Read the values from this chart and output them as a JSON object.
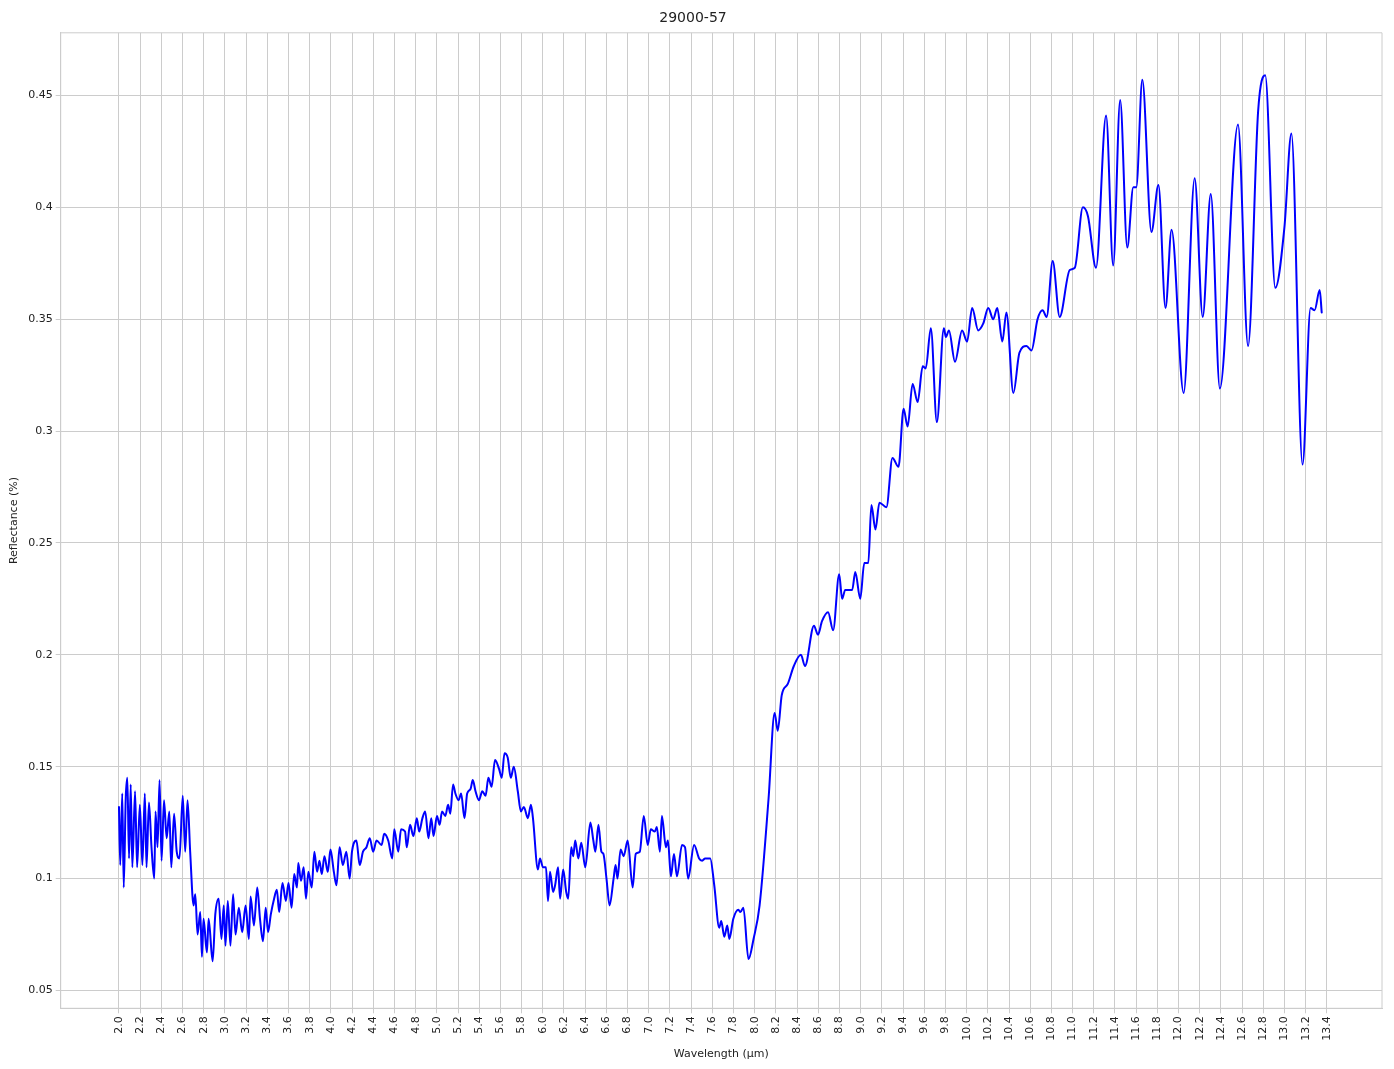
{
  "chart_data": {
    "type": "line",
    "title": "29000-57",
    "xlabel": "Wavelength (µm)",
    "ylabel": "Reflectance (%)",
    "xlim": [
      1.45,
      13.92
    ],
    "ylim": [
      0.042,
      0.478
    ],
    "xticks": [
      {
        "value": 2.0,
        "label": "2.0"
      },
      {
        "value": 2.2,
        "label": "2.2"
      },
      {
        "value": 2.4,
        "label": "2.4"
      },
      {
        "value": 2.6,
        "label": "2.6"
      },
      {
        "value": 2.8,
        "label": "2.8"
      },
      {
        "value": 3.0,
        "label": "3.0"
      },
      {
        "value": 3.2,
        "label": "3.2"
      },
      {
        "value": 3.4,
        "label": "3.4"
      },
      {
        "value": 3.6,
        "label": "3.6"
      },
      {
        "value": 3.8,
        "label": "3.8"
      },
      {
        "value": 4.0,
        "label": "4.0"
      },
      {
        "value": 4.2,
        "label": "4.2"
      },
      {
        "value": 4.4,
        "label": "4.4"
      },
      {
        "value": 4.6,
        "label": "4.6"
      },
      {
        "value": 4.8,
        "label": "4.8"
      },
      {
        "value": 5.0,
        "label": "5.0"
      },
      {
        "value": 5.2,
        "label": "5.2"
      },
      {
        "value": 5.4,
        "label": "5.4"
      },
      {
        "value": 5.6,
        "label": "5.6"
      },
      {
        "value": 5.8,
        "label": "5.8"
      },
      {
        "value": 6.0,
        "label": "6.0"
      },
      {
        "value": 6.2,
        "label": "6.2"
      },
      {
        "value": 6.4,
        "label": "6.4"
      },
      {
        "value": 6.6,
        "label": "6.6"
      },
      {
        "value": 6.8,
        "label": "6.8"
      },
      {
        "value": 7.0,
        "label": "7.0"
      },
      {
        "value": 7.2,
        "label": "7.2"
      },
      {
        "value": 7.4,
        "label": "7.4"
      },
      {
        "value": 7.6,
        "label": "7.6"
      },
      {
        "value": 7.8,
        "label": "7.8"
      },
      {
        "value": 8.0,
        "label": "8.0"
      },
      {
        "value": 8.2,
        "label": "8.2"
      },
      {
        "value": 8.4,
        "label": "8.4"
      },
      {
        "value": 8.6,
        "label": "8.6"
      },
      {
        "value": 8.8,
        "label": "8.8"
      },
      {
        "value": 9.0,
        "label": "9.0"
      },
      {
        "value": 9.2,
        "label": "9.2"
      },
      {
        "value": 9.4,
        "label": "9.4"
      },
      {
        "value": 9.6,
        "label": "9.6"
      },
      {
        "value": 9.8,
        "label": "9.8"
      },
      {
        "value": 10.0,
        "label": "10.0"
      },
      {
        "value": 10.2,
        "label": "10.2"
      },
      {
        "value": 10.4,
        "label": "10.4"
      },
      {
        "value": 10.6,
        "label": "10.6"
      },
      {
        "value": 10.8,
        "label": "10.8"
      },
      {
        "value": 11.0,
        "label": "11.0"
      },
      {
        "value": 11.2,
        "label": "11.2"
      },
      {
        "value": 11.4,
        "label": "11.4"
      },
      {
        "value": 11.6,
        "label": "11.6"
      },
      {
        "value": 11.8,
        "label": "11.8"
      },
      {
        "value": 12.0,
        "label": "12.0"
      },
      {
        "value": 12.2,
        "label": "12.2"
      },
      {
        "value": 12.4,
        "label": "12.4"
      },
      {
        "value": 12.6,
        "label": "12.6"
      },
      {
        "value": 12.8,
        "label": "12.8"
      },
      {
        "value": 13.0,
        "label": "13.0"
      },
      {
        "value": 13.2,
        "label": "13.2"
      },
      {
        "value": 13.4,
        "label": "13.4"
      }
    ],
    "yticks": [
      0.05,
      0.1,
      0.15,
      0.2,
      0.25,
      0.3,
      0.35,
      0.4,
      0.45
    ],
    "grid": true,
    "legend": false,
    "marker": "none",
    "line_style": "solid",
    "x": [
      2.0,
      2.012,
      2.031,
      2.045,
      2.064,
      2.079,
      2.095,
      2.111,
      2.126,
      2.152,
      2.171,
      2.197,
      2.221,
      2.244,
      2.26,
      2.283,
      2.307,
      2.333,
      2.345,
      2.364,
      2.383,
      2.402,
      2.425,
      2.45,
      2.475,
      2.494,
      2.52,
      2.545,
      2.571,
      2.602,
      2.625,
      2.647,
      2.672,
      2.704,
      2.72,
      2.742,
      2.767,
      2.783,
      2.798,
      2.83,
      2.846,
      2.884,
      2.909,
      2.941,
      2.967,
      2.989,
      3.005,
      3.027,
      3.052,
      3.077,
      3.1,
      3.131,
      3.163,
      3.195,
      3.226,
      3.242,
      3.274,
      3.305,
      3.331,
      3.359,
      3.385,
      3.407,
      3.433,
      3.464,
      3.49,
      3.512,
      3.543,
      3.575,
      3.6,
      3.629,
      3.654,
      3.68,
      3.692,
      3.718,
      3.743,
      3.765,
      3.787,
      3.819,
      3.844,
      3.87,
      3.892,
      3.914,
      3.939,
      3.971,
      3.996,
      4.028,
      4.053,
      4.082,
      4.113,
      4.146,
      4.177,
      4.199,
      4.241,
      4.272,
      4.303,
      4.336,
      4.367,
      4.399,
      4.431,
      4.479,
      4.503,
      4.541,
      4.579,
      4.598,
      4.636,
      4.662,
      4.7,
      4.716,
      4.747,
      4.779,
      4.811,
      4.833,
      4.864,
      4.89,
      4.921,
      4.947,
      4.969,
      5.001,
      5.026,
      5.049,
      5.08,
      5.106,
      5.127,
      5.153,
      5.175,
      5.206,
      5.229,
      5.261,
      5.286,
      5.318,
      5.339,
      5.365,
      5.397,
      5.429,
      5.46,
      5.486,
      5.517,
      5.549,
      5.587,
      5.613,
      5.638,
      5.669,
      5.698,
      5.726,
      5.764,
      5.793,
      5.821,
      5.859,
      5.888,
      5.907,
      5.954,
      5.973,
      6.002,
      6.03,
      6.049,
      6.068,
      6.097,
      6.116,
      6.144,
      6.163,
      6.192,
      6.221,
      6.24,
      6.268,
      6.287,
      6.306,
      6.335,
      6.363,
      6.401,
      6.449,
      6.477,
      6.496,
      6.525,
      6.553,
      6.572,
      6.601,
      6.63,
      6.668,
      6.687,
      6.705,
      6.734,
      6.763,
      6.801,
      6.848,
      6.877,
      6.915,
      6.953,
      6.99,
      7.019,
      7.057,
      7.076,
      7.105,
      7.124,
      7.162,
      7.181,
      7.209,
      7.238,
      7.266,
      7.314,
      7.342,
      7.371,
      7.428,
      7.475,
      7.504,
      7.532,
      7.58,
      7.618,
      7.665,
      7.684,
      7.713,
      7.741,
      7.76,
      7.798,
      7.846,
      7.865,
      7.893,
      7.941,
      7.989,
      8.046,
      8.131,
      8.188,
      8.217,
      8.255,
      8.312,
      8.369,
      8.436,
      8.474,
      8.559,
      8.597,
      8.635,
      8.692,
      8.74,
      8.797,
      8.825,
      8.854,
      8.92,
      8.949,
      8.996,
      9.034,
      9.072,
      9.101,
      9.139,
      9.177,
      9.243,
      9.3,
      9.357,
      9.405,
      9.443,
      9.49,
      9.538,
      9.585,
      9.614,
      9.662,
      9.719,
      9.785,
      9.804,
      9.833,
      9.89,
      9.957,
      10.004,
      10.052,
      10.109,
      10.156,
      10.204,
      10.251,
      10.289,
      10.337,
      10.375,
      10.441,
      10.498,
      10.565,
      10.612,
      10.669,
      10.717,
      10.755,
      10.812,
      10.878,
      10.973,
      11.021,
      11.097,
      11.145,
      11.221,
      11.316,
      11.383,
      11.449,
      11.516,
      11.573,
      11.601,
      11.658,
      11.744,
      11.81,
      11.877,
      11.934,
      12.048,
      12.152,
      12.228,
      12.304,
      12.39,
      12.561,
      12.656,
      12.751,
      12.818,
      12.913,
      12.999,
      13.065,
      13.17,
      13.246,
      13.284,
      13.332,
      13.351
    ],
    "series": [
      {
        "color": "#0000ff",
        "values": [
          0.132,
          0.106,
          0.138,
          0.096,
          0.136,
          0.145,
          0.109,
          0.142,
          0.105,
          0.139,
          0.105,
          0.133,
          0.106,
          0.138,
          0.105,
          0.134,
          0.114,
          0.1,
          0.13,
          0.114,
          0.144,
          0.108,
          0.135,
          0.118,
          0.13,
          0.105,
          0.129,
          0.112,
          0.109,
          0.137,
          0.112,
          0.135,
          0.112,
          0.088,
          0.093,
          0.075,
          0.085,
          0.065,
          0.082,
          0.067,
          0.082,
          0.063,
          0.084,
          0.091,
          0.073,
          0.088,
          0.07,
          0.09,
          0.07,
          0.093,
          0.075,
          0.087,
          0.076,
          0.088,
          0.073,
          0.092,
          0.079,
          0.096,
          0.082,
          0.072,
          0.087,
          0.076,
          0.084,
          0.091,
          0.095,
          0.085,
          0.098,
          0.09,
          0.098,
          0.087,
          0.102,
          0.096,
          0.107,
          0.099,
          0.105,
          0.091,
          0.103,
          0.096,
          0.112,
          0.103,
          0.108,
          0.102,
          0.11,
          0.103,
          0.113,
          0.103,
          0.097,
          0.114,
          0.106,
          0.112,
          0.1,
          0.112,
          0.117,
          0.106,
          0.112,
          0.114,
          0.118,
          0.112,
          0.117,
          0.115,
          0.12,
          0.117,
          0.109,
          0.122,
          0.112,
          0.122,
          0.121,
          0.114,
          0.124,
          0.119,
          0.127,
          0.121,
          0.127,
          0.13,
          0.118,
          0.127,
          0.119,
          0.128,
          0.124,
          0.13,
          0.128,
          0.133,
          0.129,
          0.142,
          0.138,
          0.135,
          0.138,
          0.127,
          0.138,
          0.14,
          0.144,
          0.139,
          0.135,
          0.139,
          0.137,
          0.145,
          0.141,
          0.153,
          0.149,
          0.145,
          0.156,
          0.154,
          0.145,
          0.15,
          0.139,
          0.13,
          0.132,
          0.127,
          0.133,
          0.127,
          0.104,
          0.109,
          0.105,
          0.105,
          0.09,
          0.103,
          0.094,
          0.097,
          0.105,
          0.091,
          0.104,
          0.094,
          0.091,
          0.114,
          0.11,
          0.117,
          0.109,
          0.116,
          0.105,
          0.125,
          0.117,
          0.112,
          0.124,
          0.112,
          0.111,
          0.1,
          0.088,
          0.1,
          0.106,
          0.1,
          0.113,
          0.11,
          0.117,
          0.096,
          0.111,
          0.112,
          0.128,
          0.115,
          0.122,
          0.121,
          0.123,
          0.112,
          0.128,
          0.114,
          0.117,
          0.101,
          0.111,
          0.101,
          0.115,
          0.114,
          0.1,
          0.115,
          0.109,
          0.108,
          0.109,
          0.109,
          0.097,
          0.078,
          0.081,
          0.074,
          0.079,
          0.073,
          0.082,
          0.086,
          0.085,
          0.087,
          0.064,
          0.073,
          0.088,
          0.136,
          0.174,
          0.166,
          0.182,
          0.187,
          0.195,
          0.2,
          0.195,
          0.213,
          0.209,
          0.215,
          0.219,
          0.211,
          0.236,
          0.225,
          0.229,
          0.229,
          0.237,
          0.225,
          0.241,
          0.241,
          0.267,
          0.256,
          0.268,
          0.266,
          0.288,
          0.284,
          0.31,
          0.302,
          0.321,
          0.313,
          0.329,
          0.328,
          0.346,
          0.304,
          0.346,
          0.342,
          0.345,
          0.331,
          0.345,
          0.34,
          0.355,
          0.345,
          0.348,
          0.355,
          0.35,
          0.355,
          0.34,
          0.353,
          0.317,
          0.335,
          0.338,
          0.336,
          0.35,
          0.354,
          0.351,
          0.376,
          0.351,
          0.372,
          0.373,
          0.4,
          0.396,
          0.373,
          0.441,
          0.374,
          0.448,
          0.382,
          0.409,
          0.409,
          0.457,
          0.389,
          0.41,
          0.355,
          0.39,
          0.317,
          0.413,
          0.351,
          0.406,
          0.319,
          0.437,
          0.338,
          0.443,
          0.459,
          0.364,
          0.391,
          0.433,
          0.285,
          0.355,
          0.354,
          0.363,
          0.353
        ]
      }
    ]
  }
}
